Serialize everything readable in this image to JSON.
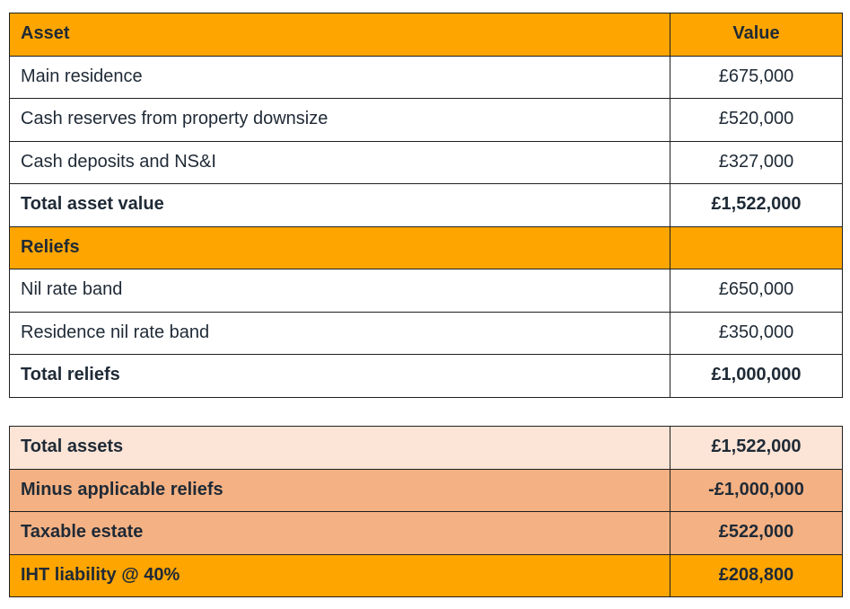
{
  "assets_table": {
    "header": {
      "label": "Asset",
      "value": "Value"
    },
    "rows": [
      {
        "label": "Main residence",
        "value": "£675,000"
      },
      {
        "label": "Cash reserves from property downsize",
        "value": "£520,000"
      },
      {
        "label": "Cash deposits and NS&I",
        "value": "£327,000"
      }
    ],
    "total": {
      "label": "Total asset value",
      "value": "£1,522,000"
    },
    "reliefs_header": {
      "label": "Reliefs",
      "value": ""
    },
    "reliefs": [
      {
        "label": "Nil rate band",
        "value": "£650,000"
      },
      {
        "label": "Residence nil rate band",
        "value": "£350,000"
      }
    ],
    "reliefs_total": {
      "label": "Total reliefs",
      "value": "£1,000,000"
    }
  },
  "summary_table": {
    "rows": [
      {
        "label": "Total assets",
        "value": "£1,522,000"
      },
      {
        "label": "Minus applicable reliefs",
        "value": "-£1,000,000"
      },
      {
        "label": "Taxable estate",
        "value": "£522,000"
      },
      {
        "label": "IHT liability @ 40%",
        "value": "£208,800"
      }
    ]
  },
  "colors": {
    "header_orange": "#ffa500",
    "light_peach": "#fce4d6",
    "salmon": "#f4b183",
    "text": "#1f2a36"
  }
}
